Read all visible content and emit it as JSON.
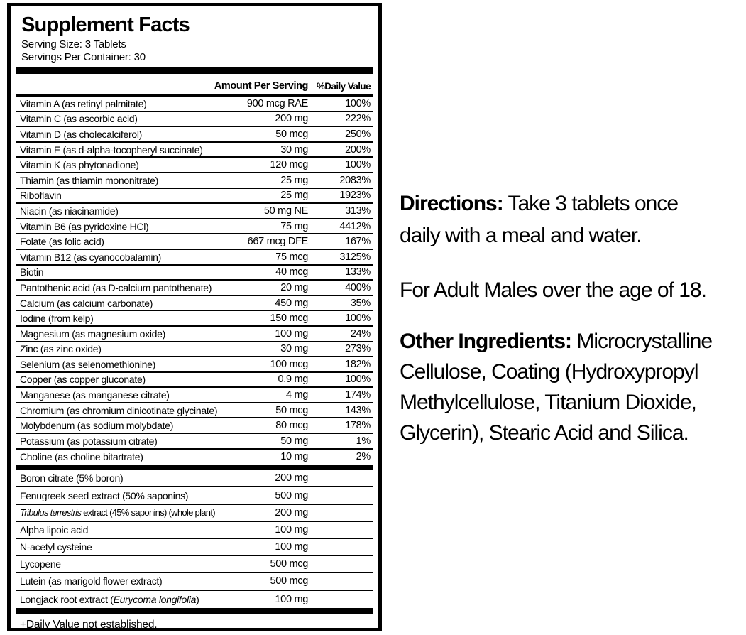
{
  "panel": {
    "title": "Supplement Facts",
    "serving_size": "Serving Size: 3 Tablets",
    "servings_per_container": "Servings Per Container: 30",
    "columns": {
      "amount": "Amount Per Serving",
      "daily_value": "%Daily Value"
    },
    "rows": [
      {
        "label": "Vitamin A (as retinyl palmitate)",
        "amount": "900 mcg RAE",
        "dv": "100%"
      },
      {
        "label": "Vitamin C (as ascorbic acid)",
        "amount": "200 mg",
        "dv": "222%"
      },
      {
        "label": "Vitamin D (as cholecalciferol)",
        "amount": "50 mcg",
        "dv": "250%"
      },
      {
        "label": "Vitamin E (as d-alpha-tocopheryl succinate)",
        "amount": "30 mg",
        "dv": "200%"
      },
      {
        "label": "Vitamin K (as phytonadione)",
        "amount": "120 mcg",
        "dv": "100%"
      },
      {
        "label": "Thiamin (as thiamin mononitrate)",
        "amount": "25 mg",
        "dv": "2083%"
      },
      {
        "label": "Riboflavin",
        "amount": "25 mg",
        "dv": "1923%"
      },
      {
        "label": "Niacin (as niacinamide)",
        "amount": "50 mg NE",
        "dv": "313%"
      },
      {
        "label": "Vitamin B6 (as pyridoxine HCl)",
        "amount": "75 mg",
        "dv": "4412%"
      },
      {
        "label": "Folate (as folic acid)",
        "amount": "667 mcg DFE",
        "dv": "167%"
      },
      {
        "label": "Vitamin B12 (as cyanocobalamin)",
        "amount": "75 mcg",
        "dv": "3125%"
      },
      {
        "label": "Biotin",
        "amount": "40 mcg",
        "dv": "133%"
      },
      {
        "label": "Pantothenic acid (as D-calcium pantothenate)",
        "amount": "20 mg",
        "dv": "400%"
      },
      {
        "label": "Calcium (as calcium carbonate)",
        "amount": "450 mg",
        "dv": "35%"
      },
      {
        "label": "Iodine (from kelp)",
        "amount": "150 mcg",
        "dv": "100%"
      },
      {
        "label": "Magnesium (as magnesium oxide)",
        "amount": "100 mg",
        "dv": "24%"
      },
      {
        "label": "Zinc (as zinc oxide)",
        "amount": "30 mg",
        "dv": "273%"
      },
      {
        "label": "Selenium (as selenomethionine)",
        "amount": "100 mcg",
        "dv": "182%"
      },
      {
        "label": "Copper (as copper gluconate)",
        "amount": "0.9 mg",
        "dv": "100%"
      },
      {
        "label": "Manganese (as manganese citrate)",
        "amount": "4 mg",
        "dv": "174%"
      },
      {
        "label": "Chromium (as chromium dinicotinate glycinate)",
        "amount": "50 mcg",
        "dv": "143%"
      },
      {
        "label": "Molybdenum (as sodium molybdate)",
        "amount": "80 mcg",
        "dv": "178%"
      },
      {
        "label": "Potassium (as potassium citrate)",
        "amount": "50 mg",
        "dv": "1%"
      },
      {
        "label": "Choline (as choline bitartrate)",
        "amount": "10 mg",
        "dv": "2%"
      }
    ],
    "rows2": [
      {
        "label": "Boron citrate (5% boron)",
        "amount": "200 mg",
        "dv": ""
      },
      {
        "label": "Fenugreek seed extract (50% saponins)",
        "amount": "500 mg",
        "dv": ""
      },
      {
        "parts": [
          {
            "t": "Tribulus terrestris",
            "i": true
          },
          {
            "t": " extract (45% saponins) (whole plant)"
          }
        ],
        "amount": "200 mg",
        "dv": ""
      },
      {
        "label": "Alpha lipoic acid",
        "amount": "100 mg",
        "dv": ""
      },
      {
        "label": "N-acetyl cysteine",
        "amount": "100 mg",
        "dv": ""
      },
      {
        "label": "Lycopene",
        "amount": "500 mcg",
        "dv": ""
      },
      {
        "label": "Lutein (as marigold flower extract)",
        "amount": "500 mcg",
        "dv": ""
      },
      {
        "parts": [
          {
            "t": "Longjack root extract ("
          },
          {
            "t": "Eurycoma longifolia",
            "i": true
          },
          {
            "t": ")"
          }
        ],
        "amount": "100 mg",
        "dv": ""
      }
    ],
    "footnote": "+Daily Value not established."
  },
  "right": {
    "directions": {
      "label": "Directions:",
      "line1_rest": " Take 3 tablets once",
      "line2": "daily with a meal and water."
    },
    "audience": "For Adult Males over the age of 18.",
    "other_ingredients": {
      "label": "Other Ingredients:",
      "line1_rest": " Microcrystalline",
      "line2": "Cellulose, Coating (Hydroxypropyl",
      "line3": "Methylcellulose, Titanium Dioxide,",
      "line4": "Glycerin), Stearic Acid and Silica."
    }
  },
  "colors": {
    "ink": "#000000",
    "background": "#ffffff"
  }
}
